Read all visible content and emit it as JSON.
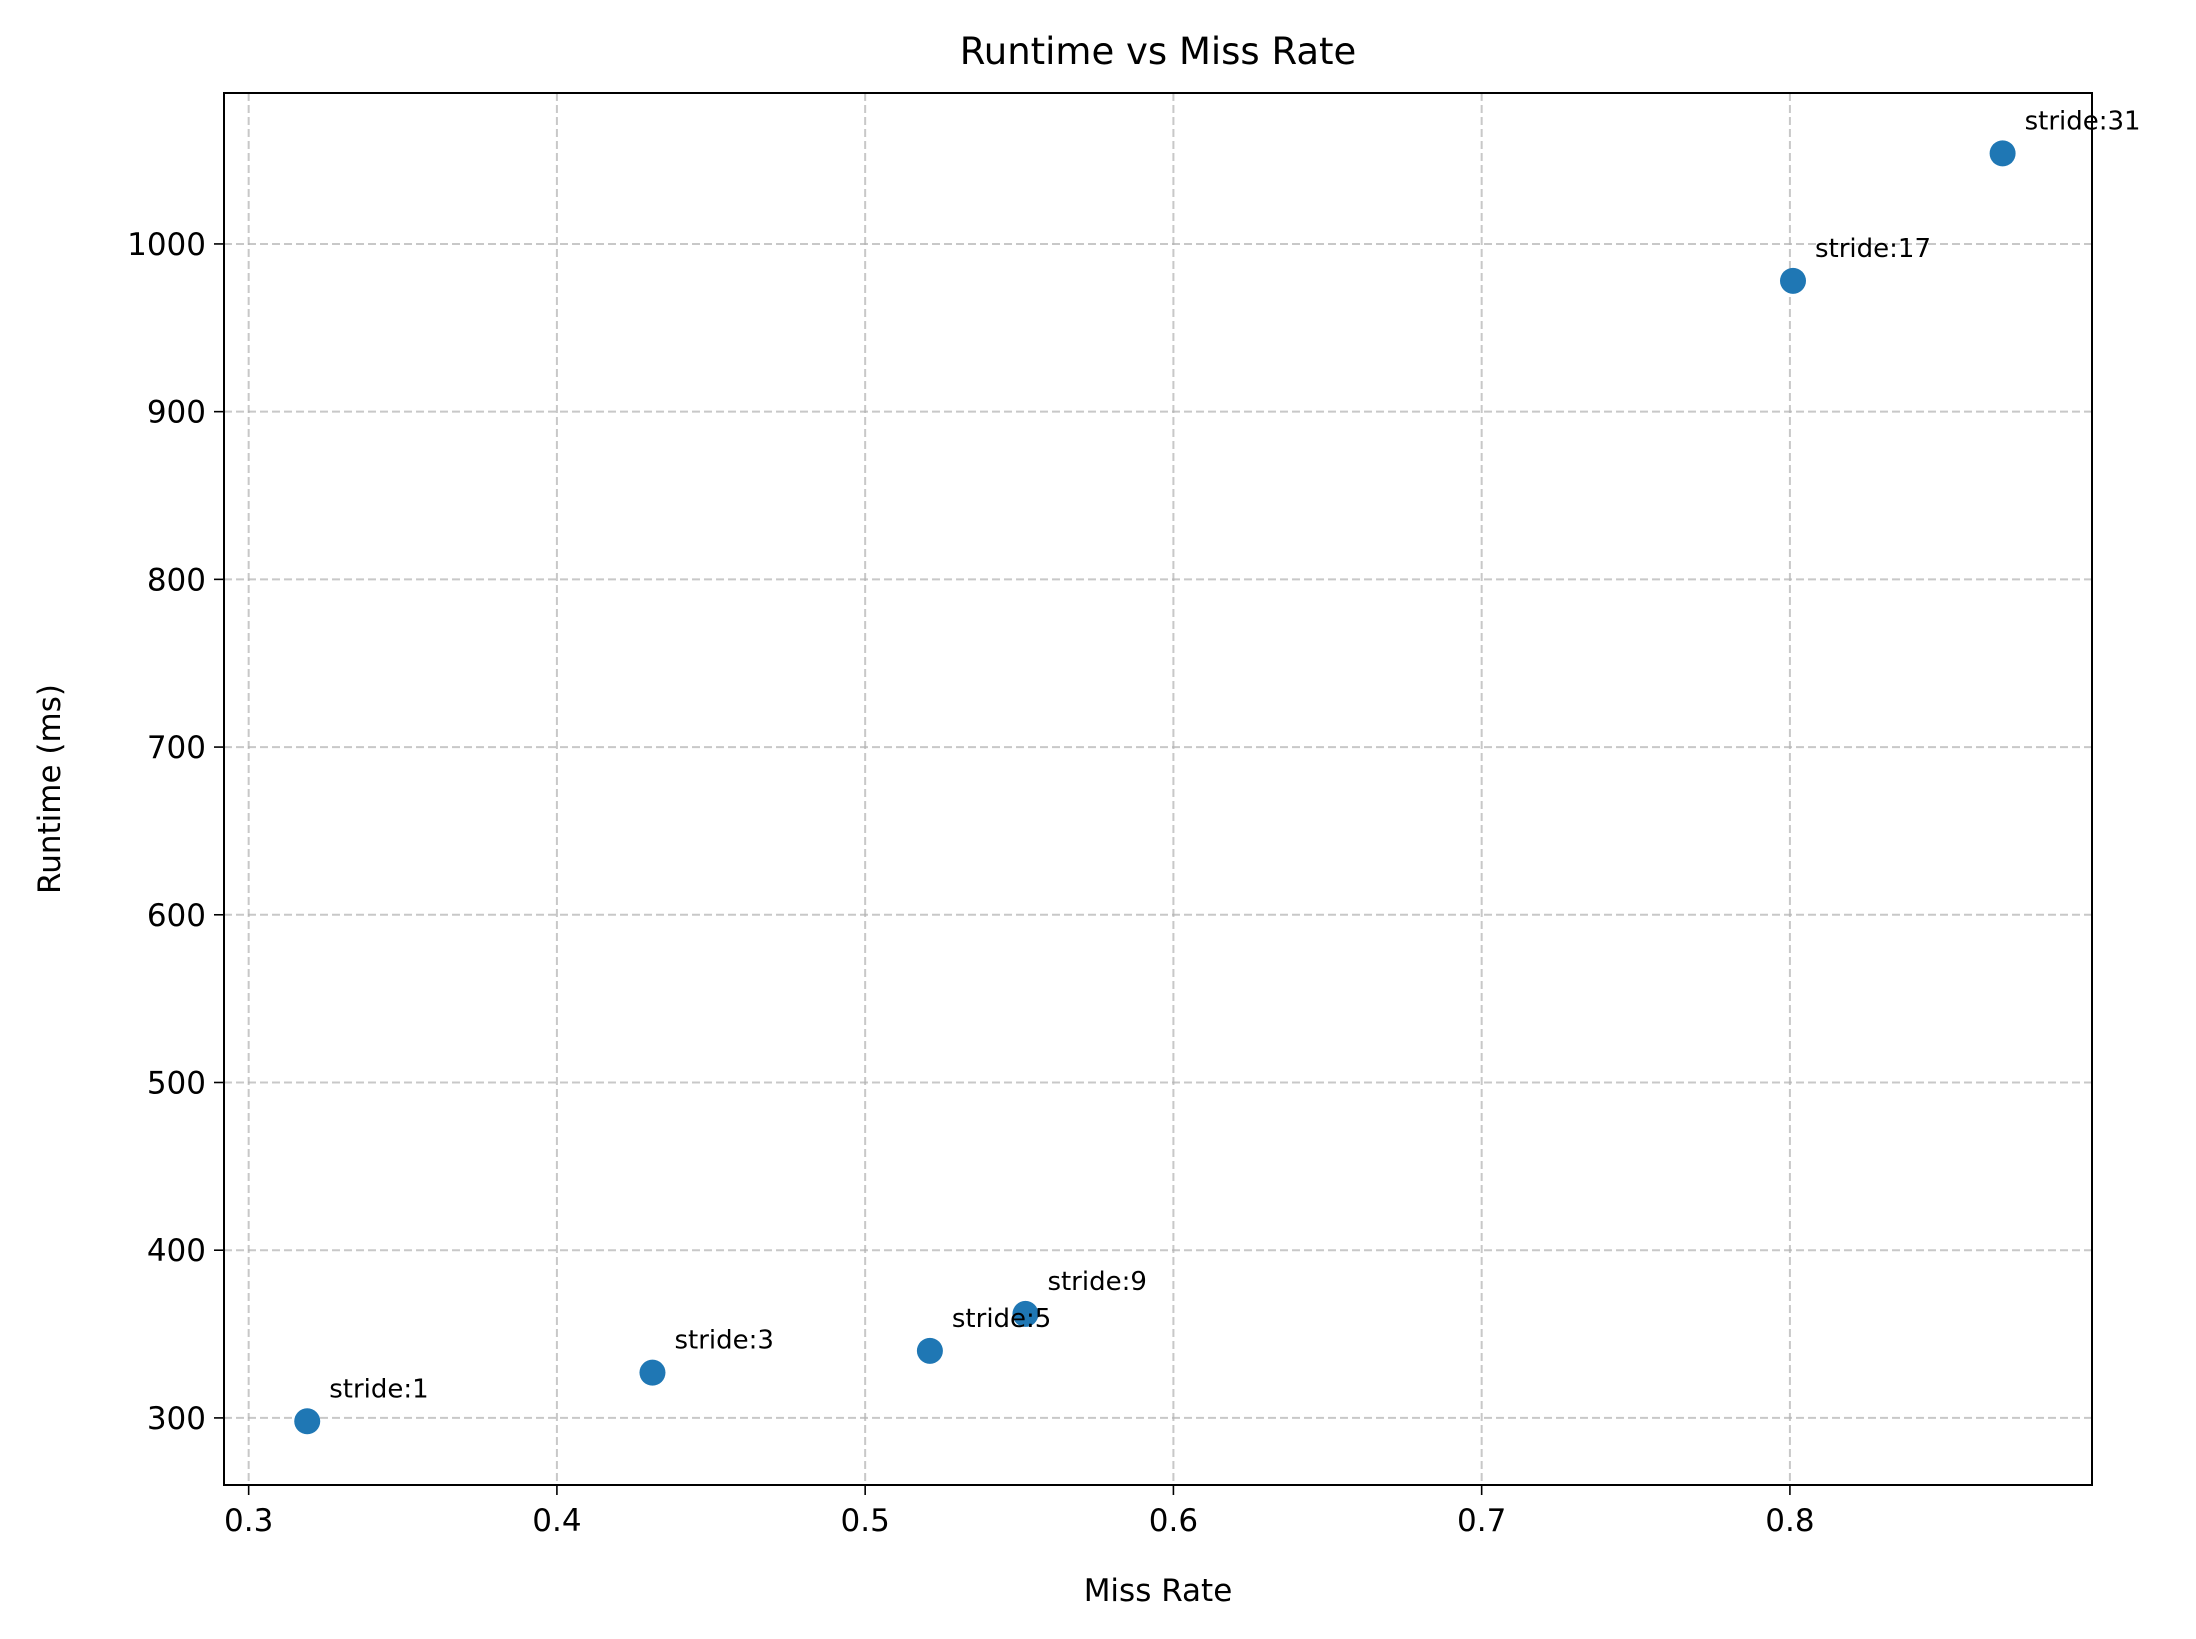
{
  "chart_data": {
    "type": "scatter",
    "title": "Runtime vs Miss Rate",
    "xlabel": "Miss Rate",
    "ylabel": "Runtime (ms)",
    "xlim": [
      0.292,
      0.898
    ],
    "ylim": [
      260,
      1090
    ],
    "xticks": [
      0.3,
      0.4,
      0.5,
      0.6,
      0.7,
      0.8
    ],
    "yticks": [
      300,
      400,
      500,
      600,
      700,
      800,
      900,
      1000
    ],
    "xtick_labels": [
      "0.3",
      "0.4",
      "0.5",
      "0.6",
      "0.7",
      "0.8"
    ],
    "ytick_labels": [
      "300",
      "400",
      "500",
      "600",
      "700",
      "800",
      "900",
      "1000"
    ],
    "grid": true,
    "marker_color": "#1f77b4",
    "points": [
      {
        "x": 0.319,
        "y": 298,
        "label": "stride:1"
      },
      {
        "x": 0.431,
        "y": 327,
        "label": "stride:3"
      },
      {
        "x": 0.521,
        "y": 340,
        "label": "stride:5"
      },
      {
        "x": 0.552,
        "y": 362,
        "label": "stride:9"
      },
      {
        "x": 0.801,
        "y": 978,
        "label": "stride:17"
      },
      {
        "x": 0.869,
        "y": 1054,
        "label": "stride:31"
      }
    ]
  }
}
